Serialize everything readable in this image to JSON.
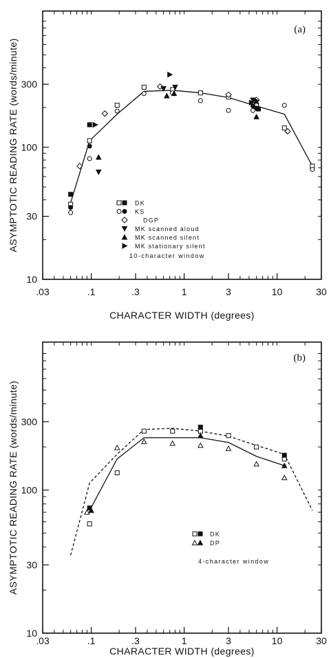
{
  "chart_data": [
    {
      "type": "scatter",
      "panel_label": "(a)",
      "xlabel": "CHARACTER WIDTH (degrees)",
      "ylabel": "ASYMPTOTIC READING RATE (words/minute)",
      "xscale": "log",
      "yscale": "log",
      "xlim": [
        0.03,
        30
      ],
      "ylim": [
        10,
        1000
      ],
      "x_ticks": [
        {
          "value": 0.03,
          "label": ".03"
        },
        {
          "value": 0.1,
          "label": ".1"
        },
        {
          "value": 0.3,
          "label": ".3"
        },
        {
          "value": 1,
          "label": "1"
        },
        {
          "value": 3,
          "label": "3"
        },
        {
          "value": 10,
          "label": "10"
        },
        {
          "value": 30,
          "label": "30"
        }
      ],
      "y_ticks": [
        {
          "value": 10,
          "label": "10"
        },
        {
          "value": 30,
          "label": "30"
        },
        {
          "value": 100,
          "label": "100"
        },
        {
          "value": 300,
          "label": "300"
        }
      ],
      "note": "10-character window",
      "curves": [
        {
          "style": "solid",
          "points": [
            [
              0.06,
              38
            ],
            [
              0.096,
              112
            ],
            [
              0.19,
              178
            ],
            [
              0.37,
              265
            ],
            [
              0.75,
              270
            ],
            [
              1.5,
              258
            ],
            [
              3,
              238
            ],
            [
              6,
              205
            ],
            [
              12,
              178
            ],
            [
              24,
              72
            ]
          ]
        }
      ],
      "series": [
        {
          "name": "DK",
          "marker": "square",
          "filled": false,
          "points": [
            [
              0.06,
              37
            ],
            [
              0.096,
              112
            ],
            [
              0.19,
              208
            ],
            [
              0.37,
              285
            ],
            [
              0.75,
              273
            ],
            [
              1.5,
              258
            ],
            [
              3,
              240
            ],
            [
              6,
              208
            ],
            [
              12,
              140
            ],
            [
              24,
              72
            ]
          ]
        },
        {
          "name": "DK",
          "marker": "square",
          "filled": true,
          "points": [
            [
              0.06,
              44
            ],
            [
              0.096,
              148
            ],
            [
              6,
              210
            ],
            [
              6.3,
              195
            ]
          ]
        },
        {
          "name": "KS",
          "marker": "circle",
          "filled": false,
          "points": [
            [
              0.06,
              32
            ],
            [
              0.096,
              82
            ],
            [
              0.19,
              188
            ],
            [
              0.37,
              255
            ],
            [
              0.75,
              258
            ],
            [
              1.5,
              225
            ],
            [
              3,
              190
            ],
            [
              5.5,
              190
            ],
            [
              6,
              208
            ],
            [
              12,
              208
            ],
            [
              24,
              68
            ]
          ]
        },
        {
          "name": "KS",
          "marker": "circle",
          "filled": true,
          "points": [
            [
              0.06,
              35
            ],
            [
              0.096,
              102
            ],
            [
              5.5,
              205
            ],
            [
              6,
              198
            ]
          ]
        },
        {
          "name": "DGP",
          "marker": "diamond",
          "filled": false,
          "points": [
            [
              0.075,
              72
            ],
            [
              0.14,
              180
            ],
            [
              0.55,
              288
            ],
            [
              3,
              250
            ],
            [
              6,
              228
            ],
            [
              13,
              132
            ]
          ]
        },
        {
          "name": "MK scanned aloud",
          "marker": "triangle-down",
          "filled": true,
          "points": [
            [
              0.12,
              65
            ],
            [
              0.6,
              278
            ],
            [
              0.8,
              285
            ],
            [
              5.5,
              228
            ]
          ]
        },
        {
          "name": "MK scanned silent",
          "marker": "triangle-up",
          "filled": true,
          "points": [
            [
              0.12,
              84
            ],
            [
              0.65,
              245
            ],
            [
              0.78,
              255
            ],
            [
              6,
              170
            ]
          ]
        },
        {
          "name": "MK stationary silent",
          "marker": "triangle-right",
          "filled": true,
          "points": [
            [
              0.11,
              148
            ],
            [
              0.7,
              355
            ],
            [
              5.3,
              218
            ],
            [
              6,
              225
            ]
          ]
        }
      ],
      "legend": [
        {
          "label": "DK",
          "markers": [
            "square-open",
            "square-filled"
          ]
        },
        {
          "label": "KS",
          "markers": [
            "circle-open",
            "circle-filled"
          ]
        },
        {
          "label": "DGP",
          "markers": [
            "diamond-open"
          ]
        },
        {
          "label": "MK scanned aloud",
          "markers": [
            "triangle-down-filled"
          ]
        },
        {
          "label": "MK scanned silent",
          "markers": [
            "triangle-up-filled"
          ]
        },
        {
          "label": "MK stationary silent",
          "markers": [
            "triangle-right-filled"
          ]
        }
      ]
    },
    {
      "type": "scatter",
      "panel_label": "(b)",
      "xlabel": "CHARACTER WIDTH (degrees)",
      "ylabel": "ASYMPTOTIC READING RATE (words/minute)",
      "xscale": "log",
      "yscale": "log",
      "xlim": [
        0.03,
        30
      ],
      "ylim": [
        10,
        1000
      ],
      "x_ticks": [
        {
          "value": 0.03,
          "label": ".03"
        },
        {
          "value": 0.1,
          "label": ".1"
        },
        {
          "value": 0.3,
          "label": ".3"
        },
        {
          "value": 1,
          "label": "1"
        },
        {
          "value": 3,
          "label": "3"
        },
        {
          "value": 10,
          "label": "10"
        },
        {
          "value": 30,
          "label": "30"
        }
      ],
      "y_ticks": [
        {
          "value": 10,
          "label": "10"
        },
        {
          "value": 30,
          "label": "30"
        },
        {
          "value": 100,
          "label": "100"
        },
        {
          "value": 300,
          "label": "300"
        }
      ],
      "note": "4-character window",
      "curves": [
        {
          "style": "solid",
          "points": [
            [
              0.096,
              72
            ],
            [
              0.19,
              165
            ],
            [
              0.37,
              232
            ],
            [
              0.75,
              232
            ],
            [
              1.5,
              232
            ],
            [
              3,
              215
            ],
            [
              6,
              172
            ],
            [
              12,
              148
            ]
          ]
        },
        {
          "style": "dashed",
          "points": [
            [
              0.06,
              35
            ],
            [
              0.096,
              112
            ],
            [
              0.19,
              178
            ],
            [
              0.37,
              265
            ],
            [
              0.75,
              270
            ],
            [
              1.5,
              258
            ],
            [
              3,
              238
            ],
            [
              6,
              205
            ],
            [
              12,
              178
            ],
            [
              24,
              72
            ]
          ]
        }
      ],
      "series": [
        {
          "name": "DK",
          "marker": "square",
          "filled": false,
          "points": [
            [
              0.096,
              58
            ],
            [
              0.19,
              132
            ],
            [
              0.37,
              258
            ],
            [
              0.75,
              258
            ],
            [
              1.5,
              258
            ],
            [
              3,
              240
            ],
            [
              6,
              200
            ],
            [
              12,
              165
            ]
          ]
        },
        {
          "name": "DK",
          "marker": "square",
          "filled": true,
          "points": [
            [
              0.096,
              75
            ],
            [
              1.5,
              275
            ],
            [
              12,
              175
            ]
          ]
        },
        {
          "name": "DP",
          "marker": "triangle-up",
          "filled": false,
          "points": [
            [
              0.09,
              70
            ],
            [
              0.19,
              198
            ],
            [
              0.37,
              218
            ],
            [
              0.75,
              212
            ],
            [
              1.5,
              205
            ],
            [
              3,
              195
            ],
            [
              6,
              152
            ],
            [
              12,
              122
            ]
          ]
        },
        {
          "name": "DP",
          "marker": "triangle-up",
          "filled": true,
          "points": [
            [
              0.1,
              72
            ],
            [
              1.5,
              240
            ],
            [
              12,
              148
            ]
          ]
        }
      ],
      "legend": [
        {
          "label": "DK",
          "markers": [
            "square-open",
            "square-filled"
          ]
        },
        {
          "label": "DP",
          "markers": [
            "triangle-up-open",
            "triangle-up-filled"
          ]
        }
      ]
    }
  ]
}
